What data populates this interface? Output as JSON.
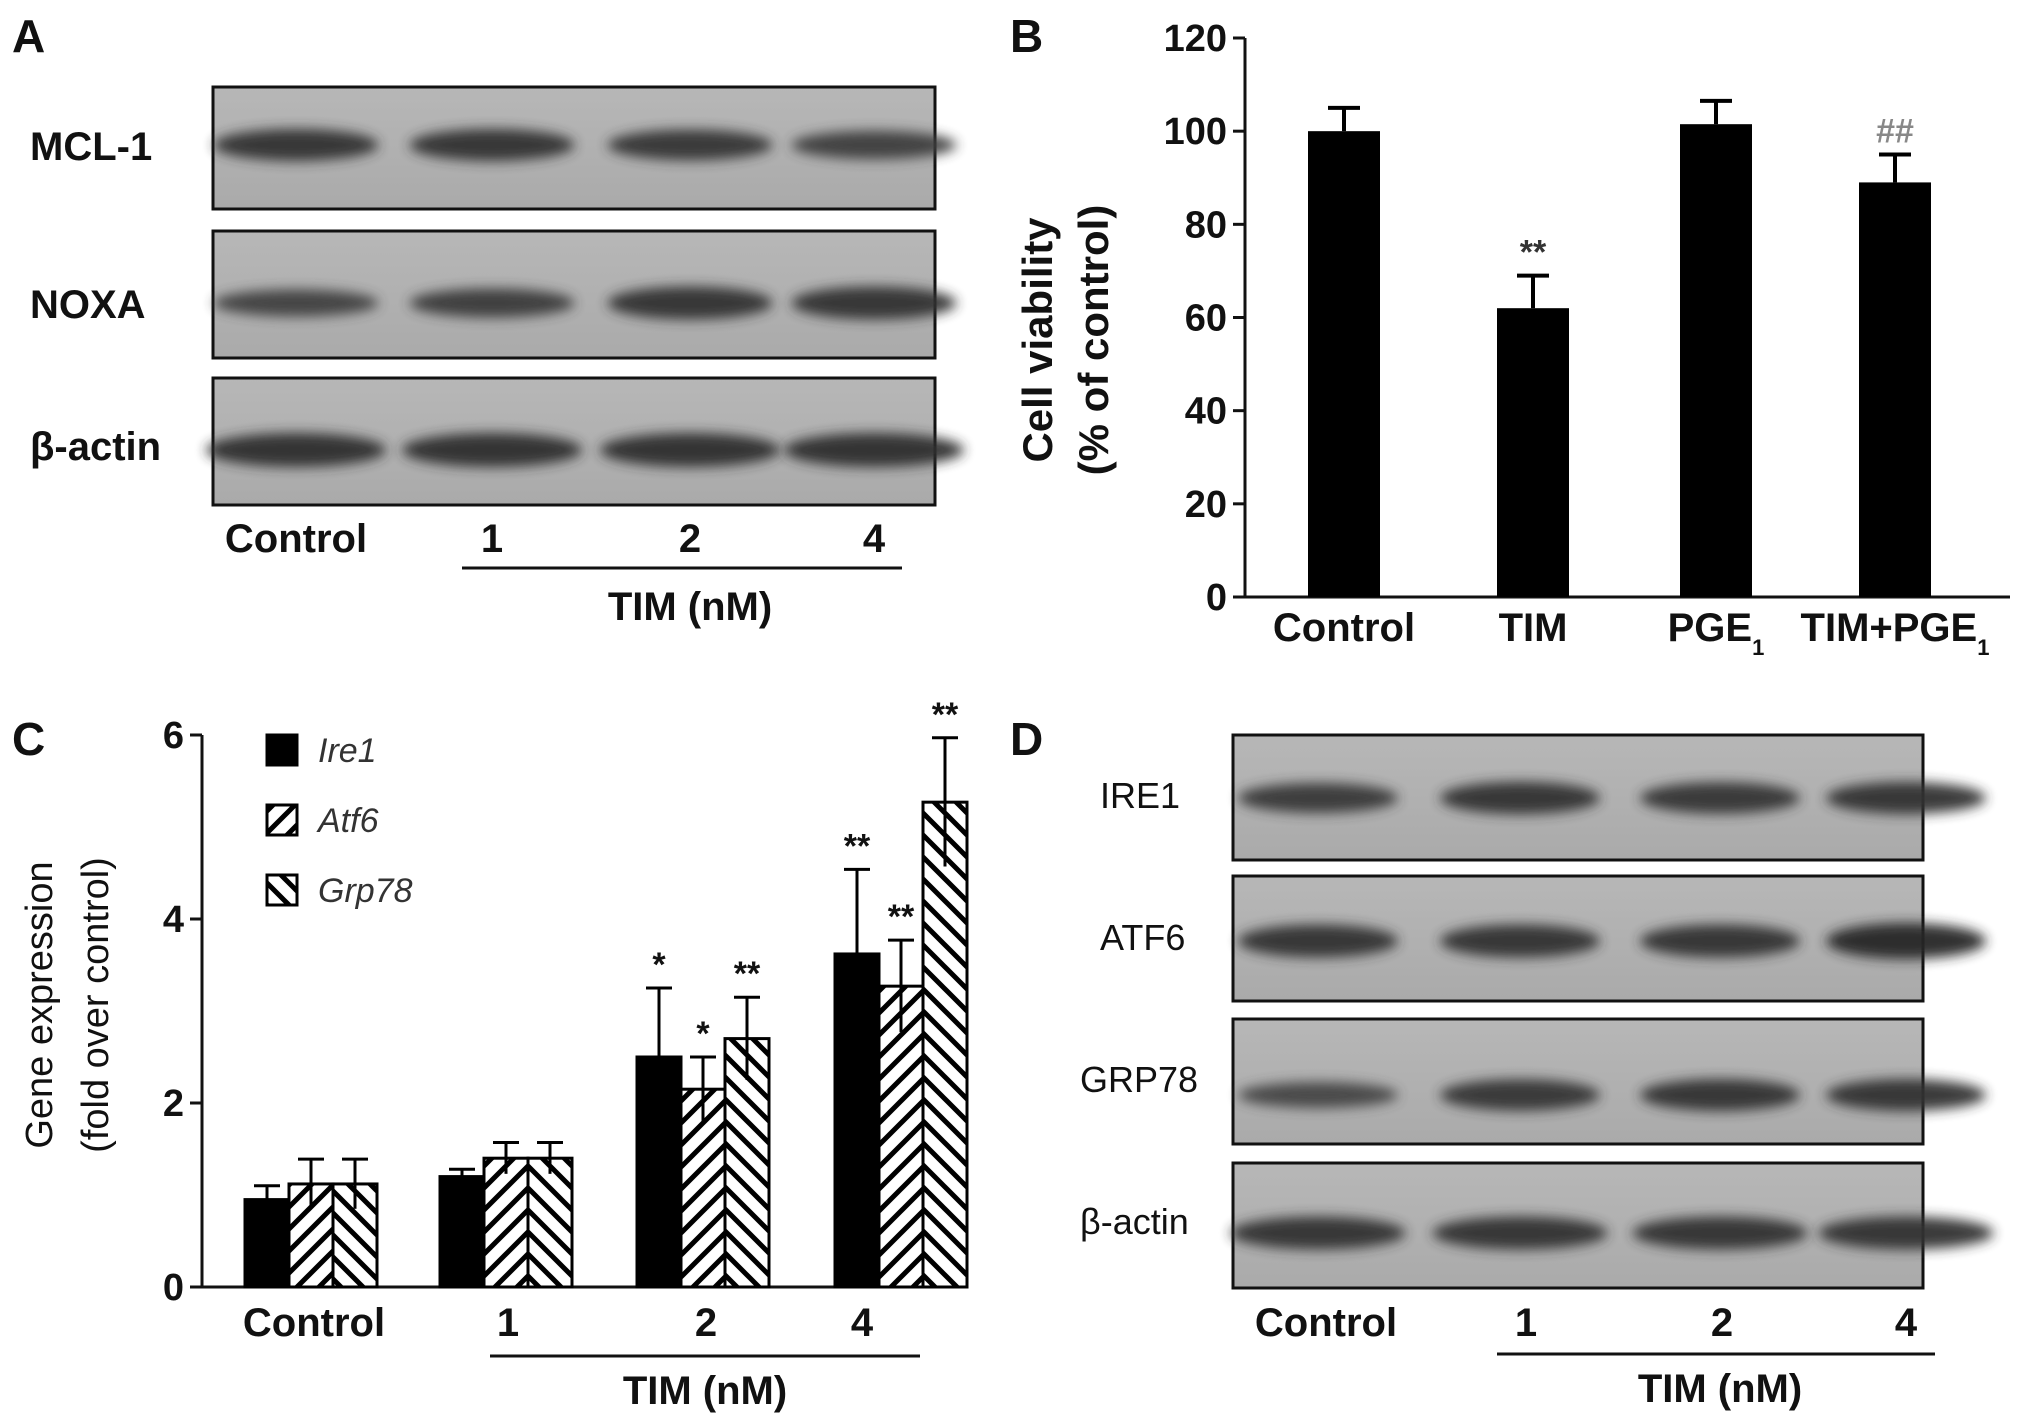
{
  "panels": {
    "A": {
      "letter": "A",
      "rows": [
        "MCL-1",
        "NOXA",
        "β-actin"
      ],
      "lanes": [
        "Control",
        "1",
        "2",
        "4"
      ],
      "group_label": "TIM (nM)",
      "band_intensity": {
        "MCL-1": [
          0.8,
          0.8,
          0.74,
          0.62
        ],
        "NOXA": [
          0.55,
          0.65,
          0.85,
          0.85
        ],
        "β-actin": [
          0.9,
          0.9,
          0.9,
          0.9
        ]
      }
    },
    "B": {
      "letter": "B"
    },
    "C": {
      "letter": "C",
      "group_label": "TIM (nM)"
    },
    "D": {
      "letter": "D",
      "rows": [
        "IRE1",
        "ATF6",
        "GRP78",
        "β-actin"
      ],
      "lanes": [
        "Control",
        "1",
        "2",
        "4"
      ],
      "group_label": "TIM (nM)",
      "band_intensity": {
        "IRE1": [
          0.7,
          0.82,
          0.78,
          0.8
        ],
        "ATF6": [
          0.85,
          0.85,
          0.85,
          1.0
        ],
        "GRP78": [
          0.5,
          0.78,
          0.8,
          0.8
        ],
        "β-actin": [
          0.85,
          0.85,
          0.85,
          0.85
        ]
      }
    }
  },
  "chart_data": [
    {
      "panel": "B",
      "type": "bar",
      "categories": [
        "Control",
        "TIM",
        "PGE",
        "TIM+PGE"
      ],
      "category_subscripts": [
        "",
        "",
        "1",
        "1"
      ],
      "values": [
        100,
        62,
        101.5,
        89
      ],
      "errors": [
        5,
        7,
        5,
        6
      ],
      "annotations": [
        "",
        "**",
        "",
        "##"
      ],
      "ylabel_line1": "Cell viability",
      "ylabel_line2": "(% of control)",
      "ylim": [
        0,
        120
      ],
      "yticks": [
        "0",
        "20",
        "40",
        "60",
        "80",
        "100",
        "120"
      ],
      "bar_color": "#000000",
      "annotation_colors": [
        "#333333",
        "#333333",
        "#333333",
        "#888888"
      ]
    },
    {
      "panel": "C",
      "type": "bar",
      "categories": [
        "Control",
        "1",
        "2",
        "4"
      ],
      "series": [
        {
          "name": "Ire1",
          "pattern": "solid",
          "values": [
            0.95,
            1.2,
            2.5,
            3.62
          ],
          "errors": [
            0.15,
            0.08,
            0.75,
            0.92
          ],
          "annotations": [
            "",
            "",
            "*",
            "**"
          ]
        },
        {
          "name": "Atf6",
          "pattern": "hatch-up",
          "values": [
            1.12,
            1.4,
            2.15,
            3.27
          ],
          "errors": [
            0.27,
            0.17,
            0.35,
            0.5
          ],
          "annotations": [
            "",
            "",
            "*",
            "**"
          ]
        },
        {
          "name": "Grp78",
          "pattern": "hatch-down",
          "values": [
            1.12,
            1.4,
            2.7,
            5.27
          ],
          "errors": [
            0.27,
            0.17,
            0.45,
            0.7
          ],
          "annotations": [
            "",
            "",
            "**",
            "**"
          ]
        }
      ],
      "ylabel_line1": "Gene expression",
      "ylabel_line2": "(fold over control)",
      "ylim": [
        0,
        6
      ],
      "yticks": [
        "0",
        "2",
        "4",
        "6"
      ],
      "legend_position": "top-left"
    }
  ]
}
